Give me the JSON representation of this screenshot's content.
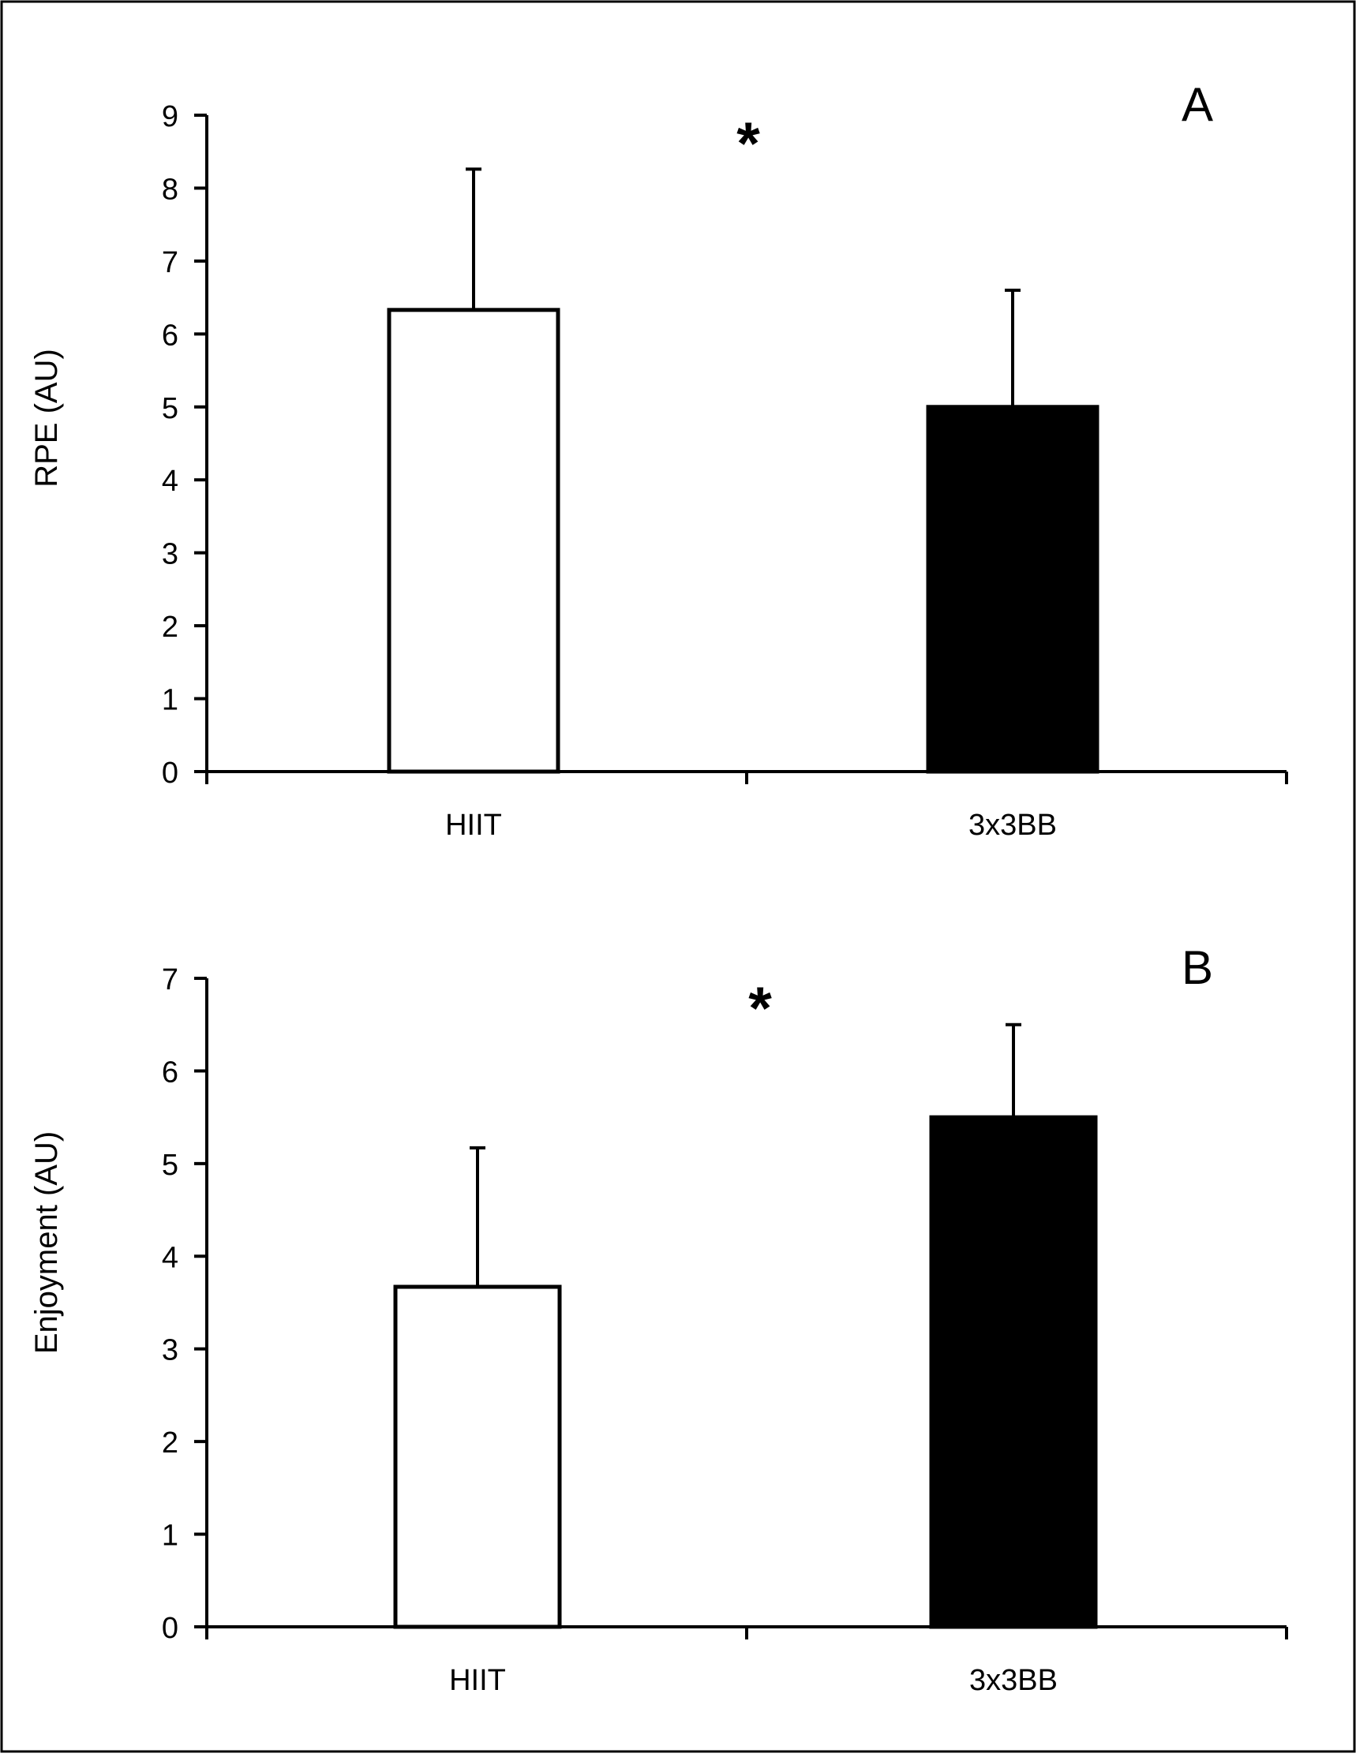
{
  "chart_data": [
    {
      "type": "bar",
      "panel_label": "A",
      "categories": [
        "HIIT",
        "3x3BB"
      ],
      "values": [
        6.33,
        5.0
      ],
      "error_bars": [
        1.93,
        1.6
      ],
      "bar_colors": [
        "#ffffff",
        "#000000"
      ],
      "title": "",
      "xlabel": "",
      "ylabel": "RPE (AU)",
      "ylim": [
        0,
        9
      ],
      "yticks": [
        "0",
        "1",
        "2",
        "3",
        "4",
        "5",
        "6",
        "7",
        "8",
        "9"
      ],
      "significance_marker": "*",
      "grid": false,
      "legend": "none"
    },
    {
      "type": "bar",
      "panel_label": "B",
      "categories": [
        "HIIT",
        "3x3BB"
      ],
      "values": [
        3.67,
        5.5
      ],
      "error_bars": [
        1.5,
        1.0
      ],
      "bar_colors": [
        "#ffffff",
        "#000000"
      ],
      "title": "",
      "xlabel": "",
      "ylabel": "Enjoyment (AU)",
      "ylim": [
        0,
        7
      ],
      "yticks": [
        "0",
        "1",
        "2",
        "3",
        "4",
        "5",
        "6",
        "7"
      ],
      "significance_marker": "*",
      "grid": false,
      "legend": "none"
    }
  ]
}
